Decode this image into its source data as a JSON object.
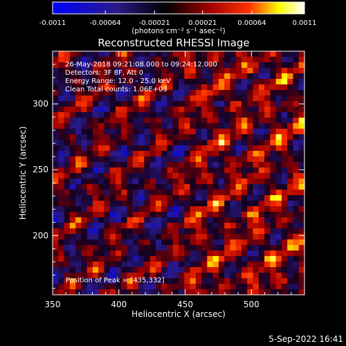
{
  "colorbar": {
    "tick_labels": [
      "-0.0011",
      "-0.00064",
      "-0.00021",
      "0.00021",
      "0.00064",
      "0.0011"
    ],
    "tick_values": [
      -0.0011,
      -0.00064,
      -0.00021,
      0.00021,
      0.00064,
      0.0011
    ],
    "range": [
      -0.0011,
      0.0011
    ],
    "unit_label": "(photons cm⁻² s⁻¹ asec⁻²)",
    "colors": [
      "#0000ff",
      "#2a1a8a",
      "#000000",
      "#a00000",
      "#ff3000",
      "#ffff00",
      "#ffffff"
    ]
  },
  "chart_data": {
    "type": "heatmap",
    "title": "Reconstructed RHESSI Image",
    "xlabel": "Heliocentric X (arcsec)",
    "ylabel": "Heliocentric Y (arcsec)",
    "xlim": [
      350,
      540
    ],
    "ylim": [
      155,
      340
    ],
    "x_ticks": [
      350,
      400,
      450,
      500
    ],
    "y_ticks": [
      200,
      250,
      300
    ],
    "x_tick_labels": [
      "350",
      "400",
      "450",
      "500"
    ],
    "y_tick_labels": [
      "200",
      "250",
      "300"
    ],
    "annotations": [
      "26-May-2018 09:21:08.000 to 09:24:12.000",
      "Detectors: 3F 8F, Att 0",
      "Energy Range: 12.0 - 25.0 keV",
      "Clean     Total counts: 1.06E+03"
    ],
    "peak_text": "Position of Peak = [435,332]",
    "peak": {
      "x": 435,
      "y": 332
    },
    "value_range": [
      -0.0011,
      0.0011
    ]
  },
  "footer": {
    "timestamp": "5-Sep-2022 16:41"
  }
}
